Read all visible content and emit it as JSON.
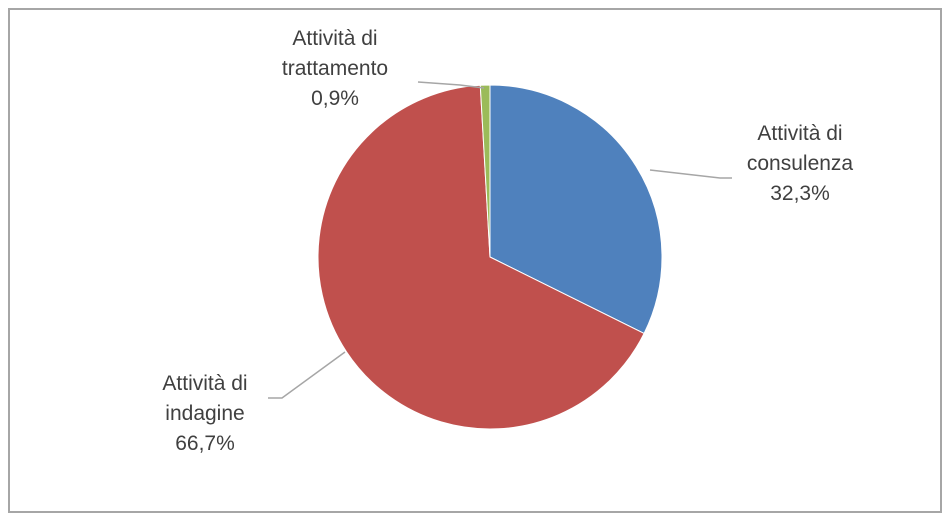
{
  "chart_data": {
    "type": "pie",
    "title": "",
    "slices": [
      {
        "name": "Attività di consulenza",
        "label_lines": [
          "Attività di",
          "consulenza",
          "32,3%"
        ],
        "value": 32.3,
        "color": "#4f81bd"
      },
      {
        "name": "Attività di indagine",
        "label_lines": [
          "Attività di",
          "indagine",
          "66,7%"
        ],
        "value": 66.7,
        "color": "#c0504d"
      },
      {
        "name": "Attività di trattamento",
        "label_lines": [
          "Attività di",
          "trattamento",
          "0,9%"
        ],
        "value": 0.9,
        "color": "#9bbb59"
      }
    ],
    "start_angle_deg": 0,
    "direction": "clockwise",
    "legend": "none",
    "data_labels": "outside with leader lines"
  }
}
